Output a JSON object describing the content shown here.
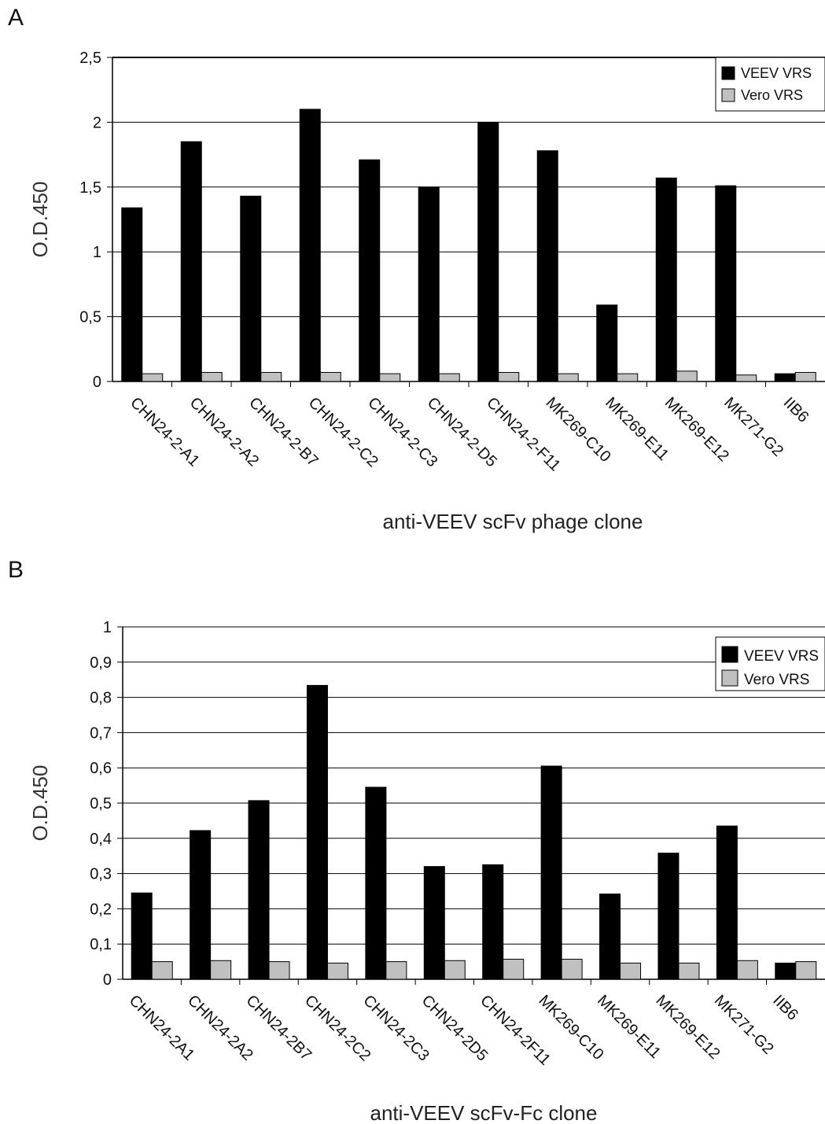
{
  "panels": {
    "a_label": "A",
    "b_label": "B"
  },
  "chart_data": [
    {
      "type": "bar",
      "categories": [
        "CHN24-2-A1",
        "CHN24-2-A2",
        "CHN24-2-B7",
        "CHN24-2-C2",
        "CHN24-2-C3",
        "CHN24-2-D5",
        "CHN24-2-F11",
        "MK269-C10",
        "MK269-E11",
        "MK269-E12",
        "MK271-G2",
        "IIB6"
      ],
      "series": [
        {
          "name": "VEEV VRS",
          "values": [
            1.34,
            1.85,
            1.43,
            2.1,
            1.71,
            1.5,
            2.0,
            1.78,
            0.59,
            1.57,
            1.51,
            0.06
          ],
          "color": "#000000"
        },
        {
          "name": "Vero VRS",
          "values": [
            0.06,
            0.07,
            0.07,
            0.07,
            0.06,
            0.06,
            0.07,
            0.06,
            0.06,
            0.08,
            0.05,
            0.07
          ],
          "color": "#c0c0c0"
        }
      ],
      "xlabel": "anti-VEEV scFv phage clone",
      "ylabel": "O.D.450",
      "ylim": [
        0,
        2.5
      ],
      "yticks": [
        "0",
        "0,5",
        "1",
        "1,5",
        "2",
        "2,5"
      ],
      "grid": true,
      "legend": "top-right"
    },
    {
      "type": "bar",
      "categories": [
        "CHN24-2A1",
        "CHN24-2A2",
        "CHN24-2B7",
        "CHN24-2C2",
        "CHN24-2C3",
        "CHN24-2D5",
        "CHN24-2F11",
        "MK269-C10",
        "MK269-E11",
        "MK269-E12",
        "MK271-G2",
        "IIB6"
      ],
      "series": [
        {
          "name": "VEEV VRS",
          "values": [
            0.245,
            0.422,
            0.507,
            0.834,
            0.545,
            0.32,
            0.325,
            0.605,
            0.242,
            0.358,
            0.435,
            0.046
          ],
          "color": "#000000"
        },
        {
          "name": "Vero VRS",
          "values": [
            0.05,
            0.053,
            0.05,
            0.046,
            0.05,
            0.053,
            0.057,
            0.057,
            0.046,
            0.046,
            0.053,
            0.05
          ],
          "color": "#c0c0c0"
        }
      ],
      "xlabel": "anti-VEEV scFv-Fc clone",
      "ylabel": "O.D.450",
      "ylim": [
        0,
        1
      ],
      "yticks": [
        "0",
        "0,1",
        "0,2",
        "0,3",
        "0,4",
        "0,5",
        "0,6",
        "0,7",
        "0,8",
        "0,9",
        "1"
      ],
      "grid": true,
      "legend": "top-right"
    }
  ]
}
